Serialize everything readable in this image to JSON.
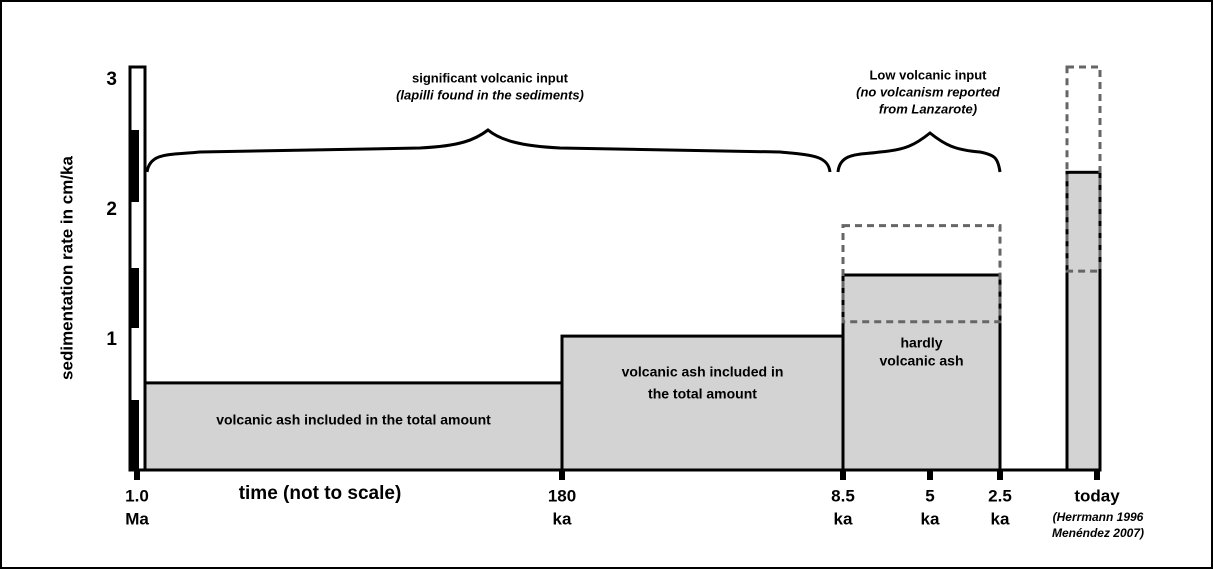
{
  "chart_data": {
    "type": "bar",
    "y_label": "sedimentation rate in cm/ka",
    "x_label": "time (not to scale)",
    "ylim": [
      0,
      3.1
    ],
    "yticks": [
      1,
      2,
      3
    ],
    "x_ticks": [
      {
        "value": "1.0",
        "unit": "Ma"
      },
      {
        "value": "180",
        "unit": "ka"
      },
      {
        "value": "8.5",
        "unit": "ka"
      },
      {
        "value": "5",
        "unit": "ka"
      },
      {
        "value": "2.5",
        "unit": "ka"
      },
      {
        "value": "today"
      }
    ],
    "reference": [
      "(Herrmann 1996",
      "Menéndez 2007)"
    ],
    "values": [
      0.67,
      1.03,
      1.5,
      2.29
    ],
    "color": "#d3d3d3",
    "bar_labels": [
      [
        "volcanic ash included in the total amount"
      ],
      [
        "volcanic ash included in",
        "the total amount"
      ],
      [
        "hardly",
        "volcanic ash"
      ]
    ],
    "ranges": [
      {
        "bar": 2,
        "low": 1.14,
        "high": 1.88
      },
      {
        "bar": 3,
        "low": 1.53,
        "high": 3.1
      }
    ],
    "annotations": [
      {
        "lines": [
          "significant volcanic input",
          "(lapilli found in the sediments)"
        ]
      },
      {
        "lines": [
          "Low volcanic input",
          "(no volcanism reported",
          "from Lanzarote)"
        ]
      }
    ]
  }
}
